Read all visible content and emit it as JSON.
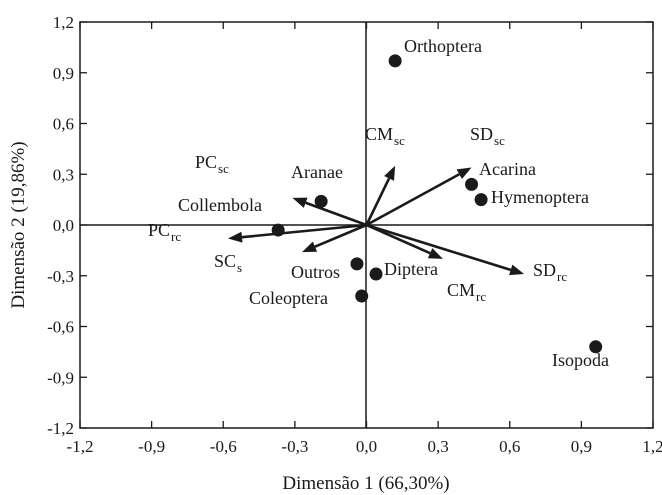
{
  "chart_data": {
    "type": "scatter",
    "title": "",
    "xlabel": "Dimensão 1 (66,30%)",
    "ylabel": "Dimensão 2 (19,86%)",
    "xlim": [
      -1.2,
      1.2
    ],
    "ylim": [
      -1.2,
      1.2
    ],
    "ticks": [
      "-1,2",
      "-0,9",
      "-0,6",
      "-0,3",
      "0,0",
      "0,3",
      "0,6",
      "0,9",
      "1,2"
    ],
    "tick_values": [
      -1.2,
      -0.9,
      -0.6,
      -0.3,
      0.0,
      0.3,
      0.6,
      0.9,
      1.2
    ],
    "grid": false,
    "reference_lines": [
      "x=0",
      "y=0"
    ],
    "points": [
      {
        "label": "Orthoptera",
        "x": 0.12,
        "y": 0.97
      },
      {
        "label": "Acarina",
        "x": 0.44,
        "y": 0.24
      },
      {
        "label": "Hymenoptera",
        "x": 0.48,
        "y": 0.15
      },
      {
        "label": "Aranae",
        "x": -0.19,
        "y": 0.14
      },
      {
        "label": "Collembola",
        "x": -0.37,
        "y": -0.03
      },
      {
        "label": "Outros",
        "x": -0.04,
        "y": -0.23
      },
      {
        "label": "Diptera",
        "x": 0.04,
        "y": -0.29
      },
      {
        "label": "Coleoptera",
        "x": -0.02,
        "y": -0.42
      },
      {
        "label": "Isopoda",
        "x": 0.96,
        "y": -0.72
      }
    ],
    "vectors": [
      {
        "label": "CM",
        "sub": "sc",
        "x": 0.12,
        "y": 0.35
      },
      {
        "label": "SD",
        "sub": "sc",
        "x": 0.44,
        "y": 0.34
      },
      {
        "label": "PC",
        "sub": "sc",
        "x": -0.31,
        "y": 0.16
      },
      {
        "label": "PC",
        "sub": "rc",
        "x": -0.58,
        "y": -0.08
      },
      {
        "label": "SC",
        "sub": "s",
        "x": -0.27,
        "y": -0.16
      },
      {
        "label": "SD",
        "sub": "rc",
        "x": 0.66,
        "y": -0.29
      },
      {
        "label": "CM",
        "sub": "rc",
        "x": 0.32,
        "y": -0.2
      }
    ],
    "colors": {
      "marker": "#1a1a1a",
      "arrow": "#1a1a1a"
    }
  }
}
